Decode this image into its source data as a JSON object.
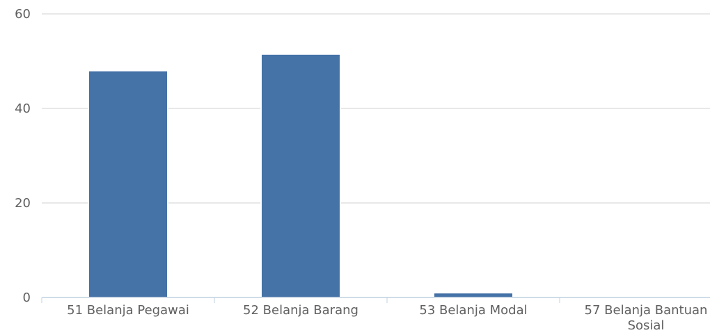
{
  "chart_data": {
    "type": "bar",
    "categories": [
      "51 Belanja Pegawai",
      "52 Belanja Barang",
      "53 Belanja Modal",
      "57 Belanja Bantuan Sosial"
    ],
    "category_lines": [
      [
        "51 Belanja Pegawai"
      ],
      [
        "52 Belanja Barang"
      ],
      [
        "53 Belanja Modal"
      ],
      [
        "57 Belanja Bantuan",
        "Sosial"
      ]
    ],
    "values": [
      48,
      51.5,
      1,
      0
    ],
    "y_ticks": [
      0,
      20,
      40,
      60
    ],
    "y_tick_labels": [
      "0",
      "20",
      "40",
      "60"
    ],
    "ylim": [
      0,
      60
    ],
    "grid": true,
    "legend": "none",
    "bar_color": "#4572a7",
    "title": "",
    "xlabel": "",
    "ylabel": ""
  }
}
